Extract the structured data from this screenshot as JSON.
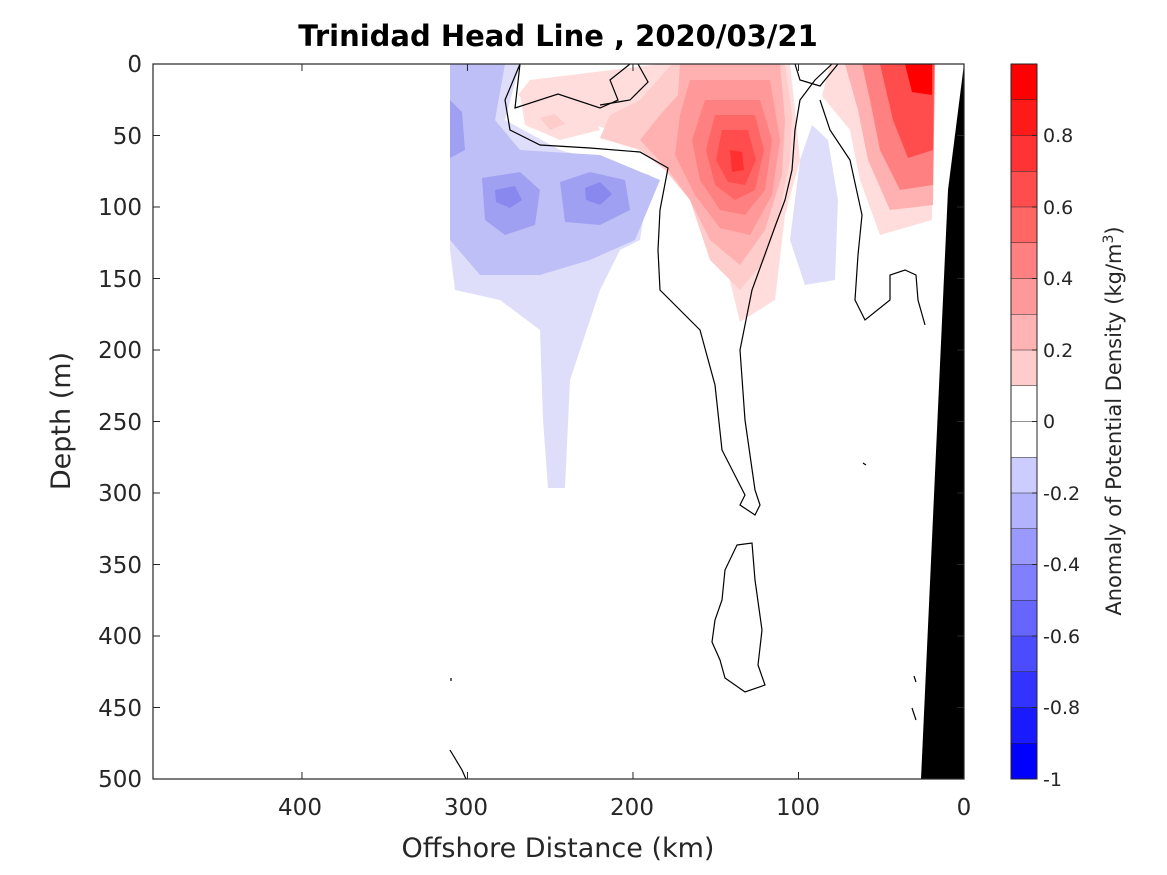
{
  "chart_data": {
    "type": "heatmap",
    "title": "Trinidad Head Line , 2020/03/21",
    "xlabel": "Offshore Distance (km)",
    "ylabel": "Depth (m)",
    "xlim": [
      490,
      0
    ],
    "ylim": [
      500,
      0
    ],
    "x_ticks": [
      "400",
      "300",
      "200",
      "100",
      "0"
    ],
    "y_ticks": [
      "0",
      "50",
      "100",
      "150",
      "200",
      "250",
      "300",
      "350",
      "400",
      "450",
      "500"
    ],
    "colorbar": {
      "label_prefix": "Anomaly of Potential Density (kg/m",
      "label_exponent": "3",
      "label_suffix": ")",
      "range": [
        -1,
        1
      ],
      "step": 0.1,
      "ticks": [
        "0.8",
        "0.6",
        "0.4",
        "0.2",
        "0",
        "-0.2",
        "-0.4",
        "-0.6",
        "-0.8",
        "-1"
      ],
      "negative_color": "#0000ff",
      "positive_color": "#ff0000"
    },
    "features": [
      {
        "name": "positive-anomaly-core-140km",
        "center": [
          137,
          72
        ],
        "peak": 0.8
      },
      {
        "name": "positive-anomaly-nearshore",
        "center": [
          35,
          30
        ],
        "peak": 0.8
      },
      {
        "name": "positive-anomaly-250km",
        "center": [
          250,
          40
        ],
        "peak": 0.2
      },
      {
        "name": "negative-anomaly-275km",
        "center": [
          275,
          95
        ],
        "peak": -0.5
      },
      {
        "name": "negative-anomaly-230km",
        "center": [
          225,
          95
        ],
        "peak": -0.5
      },
      {
        "name": "negative-anomaly-90km",
        "center": [
          90,
          120
        ],
        "peak": -0.2
      }
    ],
    "seafloor_color": "#000000"
  }
}
